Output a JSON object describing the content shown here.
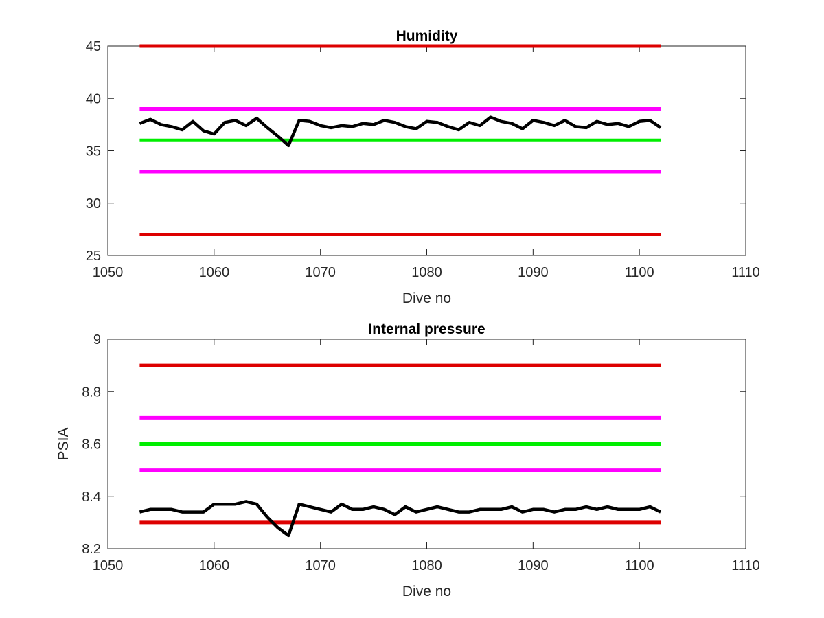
{
  "chart_data": [
    {
      "type": "line",
      "title": "Humidity",
      "xlabel": "Dive no",
      "ylabel": "",
      "xlim": [
        1050,
        1110
      ],
      "ylim": [
        25,
        45
      ],
      "xticks": [
        1050,
        1060,
        1070,
        1080,
        1090,
        1100,
        1110
      ],
      "yticks": [
        25,
        30,
        35,
        40,
        45
      ],
      "grid": false,
      "series": [
        {
          "color": "#000000",
          "x": [
            1053,
            1054,
            1055,
            1056,
            1057,
            1058,
            1059,
            1060,
            1061,
            1062,
            1063,
            1064,
            1065,
            1066,
            1067,
            1068,
            1069,
            1070,
            1071,
            1072,
            1073,
            1074,
            1075,
            1076,
            1077,
            1078,
            1079,
            1080,
            1081,
            1082,
            1083,
            1084,
            1085,
            1086,
            1087,
            1088,
            1089,
            1090,
            1091,
            1092,
            1093,
            1094,
            1095,
            1096,
            1097,
            1098,
            1099,
            1100,
            1101,
            1102
          ],
          "values": [
            37.6,
            38.0,
            37.5,
            37.3,
            37.0,
            37.8,
            36.9,
            36.6,
            37.7,
            37.9,
            37.4,
            38.1,
            37.2,
            36.4,
            35.5,
            37.9,
            37.8,
            37.4,
            37.2,
            37.4,
            37.3,
            37.6,
            37.5,
            37.9,
            37.7,
            37.3,
            37.1,
            37.8,
            37.7,
            37.3,
            37.0,
            37.7,
            37.4,
            38.2,
            37.8,
            37.6,
            37.1,
            37.9,
            37.7,
            37.4,
            37.9,
            37.3,
            37.2,
            37.8,
            37.5,
            37.6,
            37.3,
            37.8,
            37.9,
            37.2
          ]
        },
        {
          "color": "#dd0000",
          "x": [
            1053,
            1102
          ],
          "values": [
            45,
            45
          ]
        },
        {
          "color": "#ff00ff",
          "x": [
            1053,
            1102
          ],
          "values": [
            39,
            39
          ]
        },
        {
          "color": "#00ee00",
          "x": [
            1053,
            1102
          ],
          "values": [
            36,
            36
          ]
        },
        {
          "color": "#ff00ff",
          "x": [
            1053,
            1102
          ],
          "values": [
            33,
            33
          ]
        },
        {
          "color": "#dd0000",
          "x": [
            1053,
            1102
          ],
          "values": [
            27,
            27
          ]
        }
      ]
    },
    {
      "type": "line",
      "title": "Internal pressure",
      "xlabel": "Dive no",
      "ylabel": "PSIA",
      "xlim": [
        1050,
        1110
      ],
      "ylim": [
        8.2,
        9
      ],
      "xticks": [
        1050,
        1060,
        1070,
        1080,
        1090,
        1100,
        1110
      ],
      "yticks": [
        8.2,
        8.4,
        8.6,
        8.8,
        9
      ],
      "grid": false,
      "series": [
        {
          "color": "#000000",
          "x": [
            1053,
            1054,
            1055,
            1056,
            1057,
            1058,
            1059,
            1060,
            1061,
            1062,
            1063,
            1064,
            1065,
            1066,
            1067,
            1068,
            1069,
            1070,
            1071,
            1072,
            1073,
            1074,
            1075,
            1076,
            1077,
            1078,
            1079,
            1080,
            1081,
            1082,
            1083,
            1084,
            1085,
            1086,
            1087,
            1088,
            1089,
            1090,
            1091,
            1092,
            1093,
            1094,
            1095,
            1096,
            1097,
            1098,
            1099,
            1100,
            1101,
            1102
          ],
          "values": [
            8.34,
            8.35,
            8.35,
            8.35,
            8.34,
            8.34,
            8.34,
            8.37,
            8.37,
            8.37,
            8.38,
            8.37,
            8.32,
            8.28,
            8.25,
            8.37,
            8.36,
            8.35,
            8.34,
            8.37,
            8.35,
            8.35,
            8.36,
            8.35,
            8.33,
            8.36,
            8.34,
            8.35,
            8.36,
            8.35,
            8.34,
            8.34,
            8.35,
            8.35,
            8.35,
            8.36,
            8.34,
            8.35,
            8.35,
            8.34,
            8.35,
            8.35,
            8.36,
            8.35,
            8.36,
            8.35,
            8.35,
            8.35,
            8.36,
            8.34
          ]
        },
        {
          "color": "#dd0000",
          "x": [
            1053,
            1102
          ],
          "values": [
            8.9,
            8.9
          ]
        },
        {
          "color": "#ff00ff",
          "x": [
            1053,
            1102
          ],
          "values": [
            8.7,
            8.7
          ]
        },
        {
          "color": "#00ee00",
          "x": [
            1053,
            1102
          ],
          "values": [
            8.6,
            8.6
          ]
        },
        {
          "color": "#ff00ff",
          "x": [
            1053,
            1102
          ],
          "values": [
            8.5,
            8.5
          ]
        },
        {
          "color": "#dd0000",
          "x": [
            1053,
            1102
          ],
          "values": [
            8.3,
            8.3
          ]
        }
      ]
    }
  ]
}
